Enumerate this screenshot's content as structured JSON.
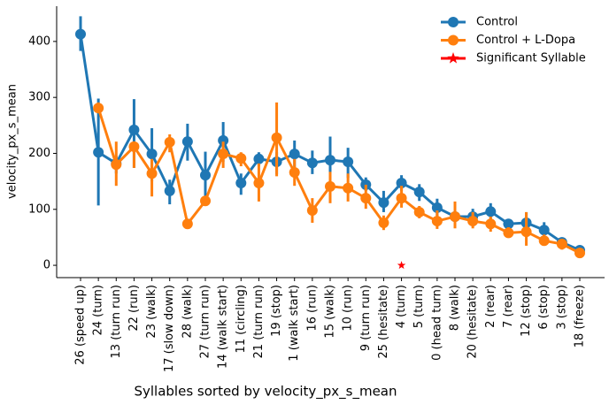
{
  "chart_data": {
    "type": "pointplot",
    "xlabel": "Syllables sorted by velocity_px_s_mean",
    "ylabel": "velocity_px_s_mean",
    "categories": [
      "26 (speed up)",
      "24 (turn)",
      "13 (turn run)",
      "22 (run)",
      "23 (walk)",
      "17 (slow down)",
      "28 (walk)",
      "27 (turn run)",
      "14 (walk start)",
      "11 (circling)",
      "21 (turn run)",
      "19 (stop)",
      "1 (walk start)",
      "16 (run)",
      "15 (walk)",
      "10 (run)",
      "9 (turn run)",
      "25 (hesitate)",
      "4 (turn)",
      "5 (turn)",
      "0 (head turn)",
      "8 (walk)",
      "20 (hesitate)",
      "2 (rear)",
      "7 (rear)",
      "12 (stop)",
      "6 (stop)",
      "3 (stop)",
      "18 (freeze)"
    ],
    "series": [
      {
        "name": "Control",
        "color": "#1f77b4",
        "marker": "circle",
        "values": [
          413,
          202,
          182,
          242,
          199,
          133,
          221,
          161,
          223,
          147,
          190,
          185,
          199,
          183,
          188,
          185,
          144,
          112,
          147,
          131,
          103,
          87,
          87,
          96,
          74,
          76,
          63,
          41,
          27
        ],
        "ci_low": [
          383,
          107,
          164,
          174,
          150,
          109,
          187,
          117,
          185,
          126,
          177,
          163,
          175,
          163,
          158,
          156,
          133,
          95,
          133,
          115,
          87,
          74,
          74,
          81,
          70,
          55,
          51,
          35,
          19
        ],
        "ci_high": [
          445,
          298,
          196,
          297,
          245,
          153,
          253,
          203,
          256,
          164,
          202,
          202,
          223,
          205,
          230,
          210,
          157,
          133,
          161,
          145,
          119,
          103,
          101,
          111,
          79,
          95,
          77,
          49,
          35
        ]
      },
      {
        "name": "Control + L-Dopa",
        "color": "#ff7f0e",
        "marker": "circle",
        "values": [
          null,
          281,
          180,
          212,
          164,
          220,
          74,
          115,
          199,
          191,
          147,
          228,
          166,
          98,
          141,
          138,
          120,
          76,
          120,
          95,
          79,
          87,
          79,
          74,
          58,
          60,
          44,
          38,
          22
        ],
        "ci_low": [
          null,
          272,
          142,
          174,
          123,
          202,
          66,
          108,
          174,
          177,
          114,
          159,
          142,
          76,
          111,
          114,
          101,
          63,
          103,
          84,
          65,
          66,
          66,
          60,
          49,
          35,
          35,
          28,
          16
        ],
        "ci_high": [
          null,
          291,
          221,
          221,
          190,
          234,
          81,
          123,
          221,
          202,
          182,
          291,
          190,
          120,
          167,
          164,
          144,
          89,
          142,
          106,
          98,
          114,
          95,
          87,
          68,
          95,
          55,
          47,
          30
        ]
      },
      {
        "name": "Significant Syllable",
        "color": "#ff0000",
        "marker": "star",
        "values": [
          null,
          null,
          null,
          null,
          null,
          null,
          null,
          null,
          null,
          null,
          null,
          null,
          null,
          null,
          null,
          null,
          null,
          null,
          0,
          null,
          null,
          null,
          null,
          null,
          null,
          null,
          null,
          null,
          null
        ]
      }
    ],
    "ylim": [
      -22,
      463
    ],
    "yticks": [
      0,
      100,
      200,
      300,
      400
    ],
    "legend": "upper right"
  }
}
